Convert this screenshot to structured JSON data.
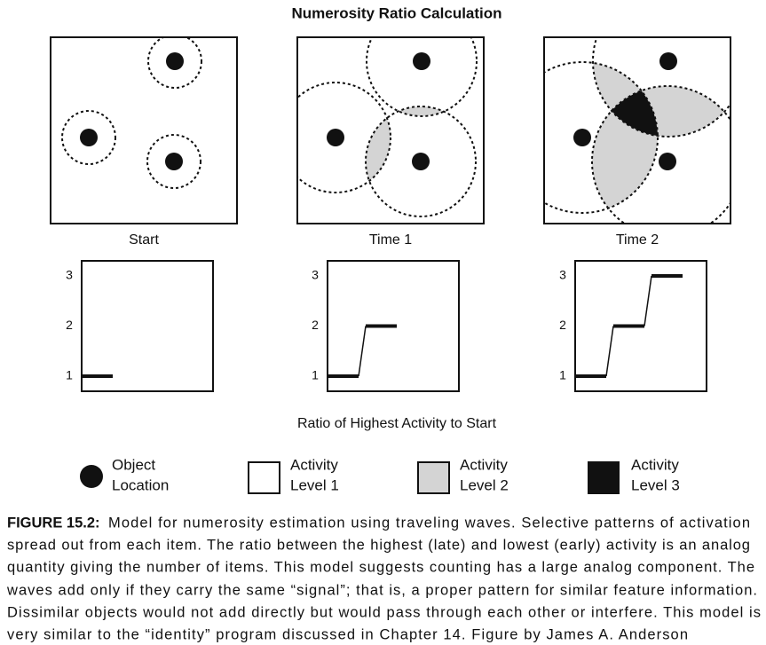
{
  "title": "Numerosity Ratio Calculation",
  "panels": [
    {
      "label": "Start",
      "plot": {
        "yticks": [
          1,
          2,
          3
        ],
        "ylim": [
          0.7,
          3.3
        ],
        "values": [
          1
        ]
      }
    },
    {
      "label": "Time 1",
      "plot": {
        "yticks": [
          1,
          2,
          3
        ],
        "ylim": [
          0.7,
          3.3
        ],
        "values": [
          1,
          2
        ]
      }
    },
    {
      "label": "Time 2",
      "plot": {
        "yticks": [
          1,
          2,
          3
        ],
        "ylim": [
          0.7,
          3.3
        ],
        "values": [
          1,
          2,
          3
        ]
      }
    }
  ],
  "x_label": "Ratio of Highest Activity to Start",
  "legend": [
    {
      "lines": [
        "Object",
        "Location"
      ]
    },
    {
      "lines": [
        "Activity",
        "Level 1"
      ]
    },
    {
      "lines": [
        "Activity",
        "Level 2"
      ]
    },
    {
      "lines": [
        "Activity",
        "Level 3"
      ]
    }
  ],
  "caption": {
    "label": "FIGURE 15.2:",
    "lines": [
      "Model for numerosity estimation using traveling waves. Selective patterns of activation",
      "spread out from each item. The ratio between the highest (late) and lowest (early) activity is an analog",
      "quantity giving the number of items. This model suggests counting has a large analog component. The",
      "waves add only if they carry the same “signal”; that is, a proper pattern for similar feature information.",
      "Dissimilar objects would not add directly but would pass through each other or interfere. This model is",
      "very similar to the “identity” program discussed in Chapter 14. Figure by James A. Anderson"
    ]
  }
}
